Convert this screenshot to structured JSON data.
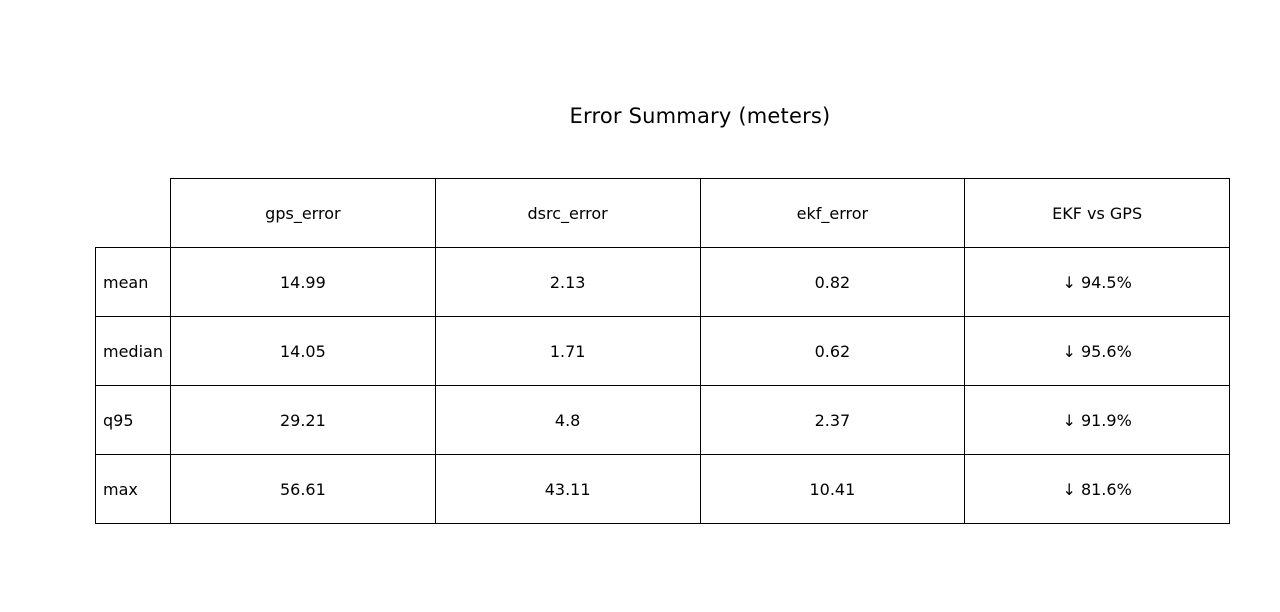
{
  "chart_data": {
    "type": "table",
    "title": "Error Summary (meters)",
    "columns": [
      "gps_error",
      "dsrc_error",
      "ekf_error",
      "EKF vs GPS"
    ],
    "rows": [
      {
        "label": "mean",
        "cells": [
          "14.99",
          "2.13",
          "0.82",
          "↓ 94.5%"
        ]
      },
      {
        "label": "median",
        "cells": [
          "14.05",
          "1.71",
          "0.62",
          "↓ 95.6%"
        ]
      },
      {
        "label": "q95",
        "cells": [
          "29.21",
          "4.8",
          "2.37",
          "↓ 91.9%"
        ]
      },
      {
        "label": "max",
        "cells": [
          "56.61",
          "43.11",
          "10.41",
          "↓ 81.6%"
        ]
      }
    ]
  }
}
